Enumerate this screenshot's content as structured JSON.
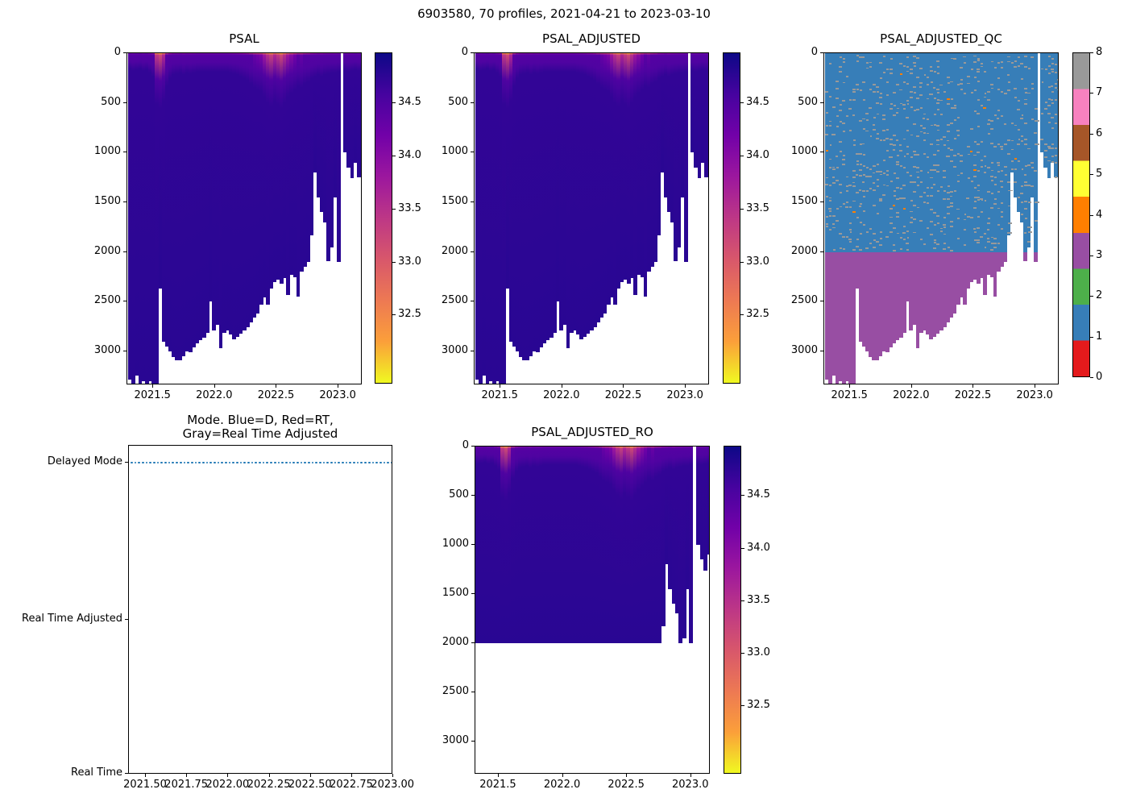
{
  "suptitle": "6903580, 70 profiles, 2021-04-21 to 2023-03-10",
  "colors": {
    "background": "#ffffff",
    "text": "#000000",
    "mode_marker_blue": "#1f77b4",
    "qc_flag_palette_0_to_8": [
      "#e41a1c",
      "#377eb8",
      "#4daf4a",
      "#984ea3",
      "#ff7f00",
      "#ffff33",
      "#a65628",
      "#f781bf",
      "#999999"
    ],
    "plasma_reversed_top_to_bottom": [
      "#0d0887",
      "#46039f",
      "#7201a8",
      "#9c179e",
      "#bd3786",
      "#d8576b",
      "#ed7953",
      "#fb9f3a",
      "#f0f921"
    ]
  },
  "profiles": {
    "count": 70,
    "time_start_decimal_year": 2021.31,
    "time_end_decimal_year": 2023.19,
    "max_depth_dbar": [
      3280,
      3330,
      3240,
      3320,
      3300,
      3340,
      3300,
      3330,
      3340,
      2370,
      2900,
      2950,
      3000,
      3060,
      3090,
      3090,
      3050,
      3000,
      3010,
      2960,
      2920,
      2890,
      2860,
      2810,
      2500,
      2790,
      2730,
      2970,
      2810,
      2790,
      2830,
      2880,
      2850,
      2820,
      2790,
      2760,
      2710,
      2660,
      2620,
      2530,
      2460,
      2530,
      2365,
      2300,
      2280,
      2320,
      2260,
      2430,
      2230,
      2250,
      2450,
      2200,
      2150,
      2100,
      1830,
      1200,
      1450,
      1600,
      1700,
      2090,
      1950,
      1450,
      2100,
      null,
      1000,
      1150,
      1260,
      1100,
      1250,
      1230
    ],
    "surface_psal": [
      34.3,
      34.2,
      34.25,
      34.3,
      34.2,
      34.25,
      34.1,
      33.9,
      32.4,
      32.2,
      32.6,
      33.4,
      33.8,
      34.0,
      34.05,
      34.1,
      34.0,
      34.1,
      34.05,
      34.1,
      34.15,
      34.15,
      34.15,
      34.15,
      34.15,
      34.15,
      34.15,
      34.15,
      34.15,
      34.15,
      34.1,
      34.05,
      34.0,
      33.9,
      33.8,
      33.7,
      33.5,
      33.3,
      33.2,
      33.1,
      32.8,
      32.5,
      32.3,
      32.6,
      32.4,
      32.2,
      32.5,
      32.8,
      33.0,
      33.2,
      33.4,
      33.3,
      33.5,
      33.6,
      33.8,
      33.9,
      34.0,
      33.9,
      34.0,
      34.05,
      34.1,
      34.1,
      34.15,
      null,
      34.2,
      34.15,
      34.2,
      34.25,
      34.2,
      34.25
    ],
    "deep_psal": 34.78
  },
  "chart_data": [
    {
      "id": "psal",
      "type": "heatmap",
      "title": "PSAL",
      "xlim": [
        2021.29,
        2023.25
      ],
      "ylim": [
        3340,
        0
      ],
      "xticks": [
        2021.5,
        2022.0,
        2022.5,
        2023.0
      ],
      "xtick_labels": [
        "2021.5",
        "2022.0",
        "2022.5",
        "2023.0"
      ],
      "yticks": [
        0,
        500,
        1000,
        1500,
        2000,
        2500,
        3000
      ],
      "ytick_labels": [
        "0",
        "500",
        "1000",
        "1500",
        "2000",
        "2500",
        "3000"
      ],
      "colorbar": {
        "vmin": 31.85,
        "vmax": 34.97,
        "ticks": [
          34.5,
          34.0,
          33.5,
          33.0,
          32.5
        ],
        "tick_labels": [
          "34.5",
          "34.0",
          "33.5",
          "33.0",
          "32.5"
        ],
        "colormap": "plasma_r"
      }
    },
    {
      "id": "psal_adjusted",
      "type": "heatmap",
      "title": "PSAL_ADJUSTED",
      "xlim": [
        2021.29,
        2023.25
      ],
      "ylim": [
        3340,
        0
      ],
      "xticks": [
        2021.5,
        2022.0,
        2022.5,
        2023.0
      ],
      "xtick_labels": [
        "2021.5",
        "2022.0",
        "2022.5",
        "2023.0"
      ],
      "yticks": [
        0,
        500,
        1000,
        1500,
        2000,
        2500,
        3000
      ],
      "ytick_labels": [
        "0",
        "500",
        "1000",
        "1500",
        "2000",
        "2500",
        "3000"
      ],
      "colorbar": {
        "vmin": 31.85,
        "vmax": 34.97,
        "ticks": [
          34.5,
          34.0,
          33.5,
          33.0,
          32.5
        ],
        "tick_labels": [
          "34.5",
          "34.0",
          "33.5",
          "33.0",
          "32.5"
        ],
        "colormap": "plasma_r"
      }
    },
    {
      "id": "qc",
      "type": "heatmap_categorical",
      "title": "PSAL_ADJUSTED_QC",
      "xlim": [
        2021.29,
        2023.25
      ],
      "ylim": [
        3340,
        0
      ],
      "xticks": [
        2021.5,
        2022.0,
        2022.5,
        2023.0
      ],
      "xtick_labels": [
        "2021.5",
        "2022.0",
        "2022.5",
        "2023.0"
      ],
      "yticks": [
        0,
        500,
        1000,
        1500,
        2000,
        2500,
        3000
      ],
      "ytick_labels": [
        "0",
        "500",
        "1000",
        "1500",
        "2000",
        "2500",
        "3000"
      ],
      "flag_above_2000_dbar": 1,
      "flag_below_2000_dbar": 3,
      "speckle_flag": 8,
      "rare_speckle_flag": 4,
      "boundary_dbar": 2000,
      "colorbar": {
        "vmin": 0,
        "vmax": 8,
        "ticks": [
          0,
          1,
          2,
          3,
          4,
          5,
          6,
          7,
          8
        ],
        "tick_labels": [
          "0",
          "1",
          "2",
          "3",
          "4",
          "5",
          "6",
          "7",
          "8"
        ],
        "n_bands": 9
      }
    },
    {
      "id": "mode",
      "type": "scatter",
      "title_lines": [
        "Mode. Blue=D, Red=RT,",
        "Gray=Real Time Adjusted"
      ],
      "ytick_labels": [
        "Delayed Mode",
        "Real Time Adjusted",
        "Real Time"
      ],
      "xticks": [
        2021.5,
        2021.75,
        2022.0,
        2022.25,
        2022.5,
        2022.75,
        2023.0
      ],
      "xtick_labels": [
        "2021.50",
        "2021.75",
        "2022.00",
        "2022.25",
        "2022.50",
        "2022.75",
        "2023.00"
      ],
      "all_profiles_mode": "Delayed Mode",
      "marker": "dotted line of 70 blue points at Delayed Mode level"
    },
    {
      "id": "ro",
      "type": "heatmap",
      "title": "PSAL_ADJUSTED_RO",
      "xlim": [
        2021.32,
        2023.15
      ],
      "ylim": [
        3340,
        0
      ],
      "clip_depth_dbar": 2000,
      "xticks": [
        2021.5,
        2022.0,
        2022.5,
        2023.0
      ],
      "xtick_labels": [
        "2021.5",
        "2022.0",
        "2022.5",
        "2023.0"
      ],
      "yticks": [
        0,
        500,
        1000,
        1500,
        2000,
        2500,
        3000
      ],
      "ytick_labels": [
        "0",
        "500",
        "1000",
        "1500",
        "2000",
        "2500",
        "3000"
      ],
      "colorbar": {
        "vmin": 31.85,
        "vmax": 34.97,
        "ticks": [
          34.5,
          34.0,
          33.5,
          33.0,
          32.5
        ],
        "tick_labels": [
          "34.5",
          "34.0",
          "33.5",
          "33.0",
          "32.5"
        ],
        "colormap": "plasma_r"
      }
    }
  ]
}
